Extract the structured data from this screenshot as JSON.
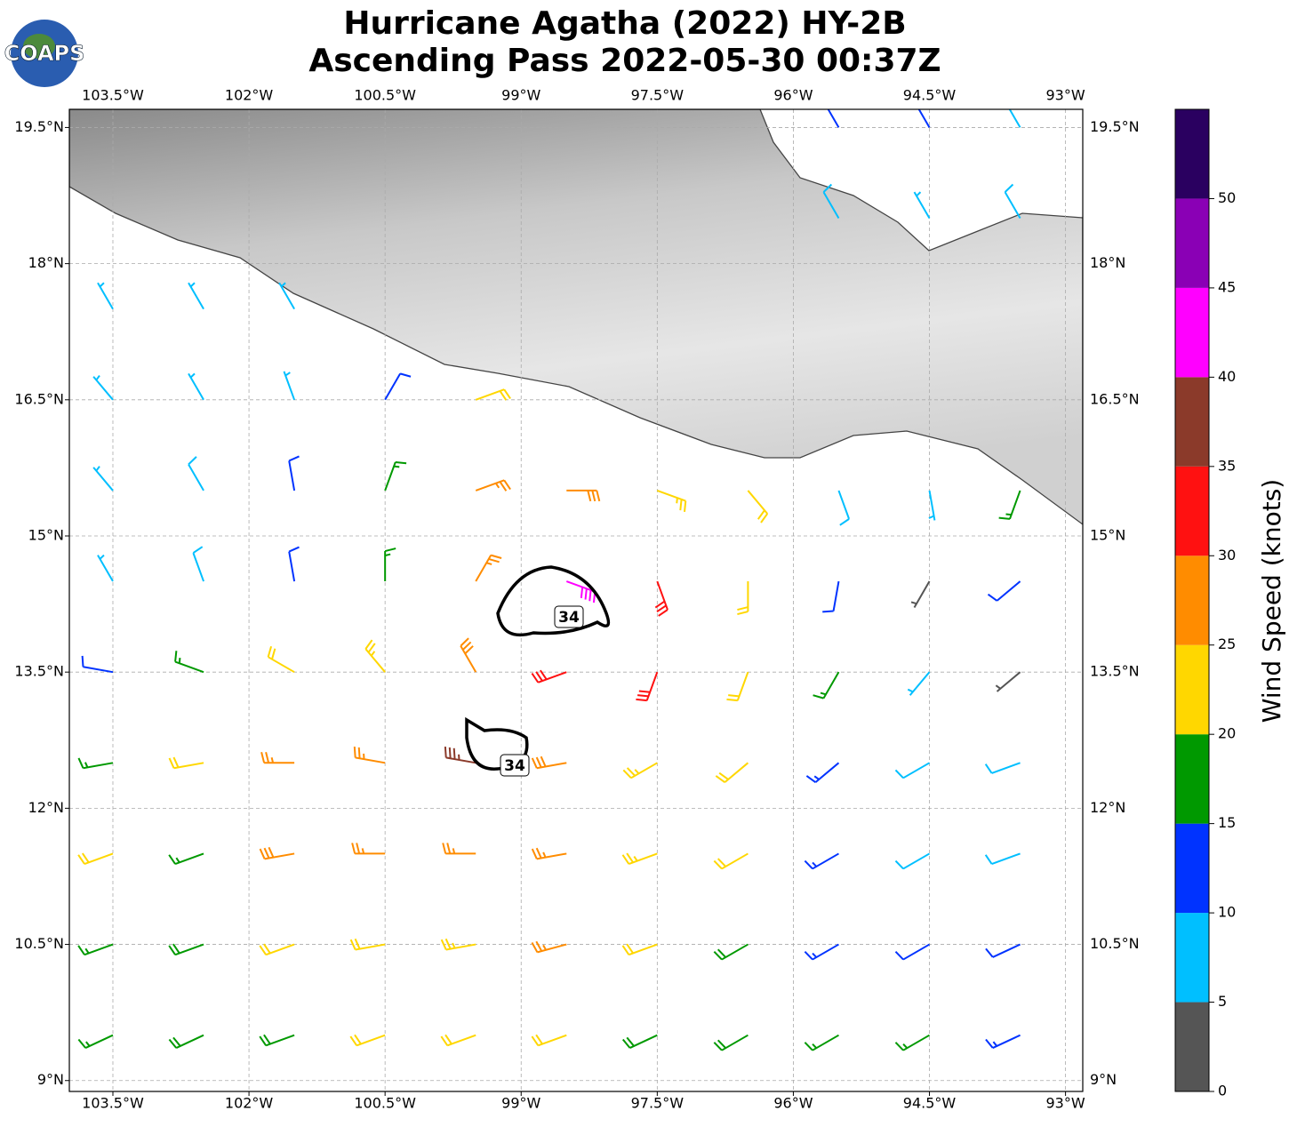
{
  "chart_data": {
    "type": "wind_barbs",
    "logo": "COAPS",
    "title": "Hurricane Agatha (2022) HY-2B",
    "subtitle": "Ascending Pass 2022-05-30 00:37Z",
    "xlim": [
      -103.98,
      -92.81
    ],
    "ylim": [
      8.88,
      19.7
    ],
    "xticks": [
      {
        "value": -103.5,
        "label": "103.5°W"
      },
      {
        "value": -102,
        "label": "102°W"
      },
      {
        "value": -100.5,
        "label": "100.5°W"
      },
      {
        "value": -99,
        "label": "99°W"
      },
      {
        "value": -97.5,
        "label": "97.5°W"
      },
      {
        "value": -96,
        "label": "96°W"
      },
      {
        "value": -94.5,
        "label": "94.5°W"
      },
      {
        "value": -93,
        "label": "93°W"
      }
    ],
    "yticks": [
      {
        "value": 9,
        "label": "9°N"
      },
      {
        "value": 10.5,
        "label": "10.5°N"
      },
      {
        "value": 12,
        "label": "12°N"
      },
      {
        "value": 13.5,
        "label": "13.5°N"
      },
      {
        "value": 15,
        "label": "15°N"
      },
      {
        "value": 16.5,
        "label": "16.5°N"
      },
      {
        "value": 18,
        "label": "18°N"
      },
      {
        "value": 19.5,
        "label": "19.5°N"
      }
    ],
    "grid": true,
    "contour_level": 34,
    "barbs": {
      "lons": [
        -103.5,
        -102.5,
        -101.5,
        -100.5,
        -99.5,
        -98.5,
        -97.5,
        -96.5,
        -95.5,
        -94.5,
        -93.5
      ],
      "lats": [
        19.5,
        18.5,
        17.5,
        16.5,
        15.5,
        14.5,
        13.5,
        12.5,
        11.5,
        10.5,
        9.5
      ],
      "speed": [
        [
          null,
          null,
          null,
          null,
          null,
          null,
          null,
          null,
          12,
          10,
          8
        ],
        [
          null,
          null,
          null,
          null,
          null,
          null,
          null,
          null,
          8,
          7,
          8
        ],
        [
          7,
          7,
          7,
          null,
          null,
          null,
          null,
          null,
          null,
          null,
          null
        ],
        [
          6,
          7,
          7,
          12,
          22,
          null,
          null,
          null,
          null,
          null,
          null
        ],
        [
          7,
          8,
          12,
          17,
          27,
          28,
          23,
          20,
          8,
          7,
          17
        ],
        [
          7,
          8,
          10,
          17,
          25,
          42,
          30,
          22,
          12,
          3,
          10
        ],
        [
          12,
          17,
          20,
          24,
          28,
          30,
          30,
          22,
          15,
          7,
          3
        ],
        [
          17,
          22,
          27,
          27,
          37,
          28,
          24,
          20,
          13,
          8,
          8
        ],
        [
          20,
          17,
          28,
          27,
          25,
          27,
          23,
          20,
          13,
          8,
          8
        ],
        [
          17,
          18,
          20,
          22,
          23,
          25,
          22,
          18,
          13,
          10,
          10
        ],
        [
          17,
          18,
          18,
          20,
          22,
          20,
          18,
          18,
          17,
          16,
          13
        ]
      ],
      "direction": [
        [
          null,
          null,
          null,
          null,
          null,
          null,
          null,
          null,
          330,
          330,
          330
        ],
        [
          null,
          null,
          null,
          null,
          null,
          null,
          null,
          null,
          330,
          330,
          330
        ],
        [
          330,
          330,
          330,
          null,
          null,
          null,
          null,
          null,
          null,
          null,
          null
        ],
        [
          320,
          330,
          340,
          30,
          70,
          null,
          null,
          null,
          null,
          null,
          null
        ],
        [
          320,
          330,
          350,
          20,
          70,
          90,
          110,
          140,
          160,
          170,
          200
        ],
        [
          330,
          340,
          350,
          0,
          30,
          110,
          160,
          180,
          190,
          210,
          230
        ],
        [
          280,
          290,
          300,
          320,
          330,
          250,
          200,
          200,
          210,
          220,
          230
        ],
        [
          260,
          260,
          270,
          280,
          280,
          260,
          240,
          230,
          230,
          240,
          250
        ],
        [
          250,
          250,
          260,
          270,
          270,
          260,
          250,
          240,
          240,
          240,
          250
        ],
        [
          250,
          250,
          250,
          260,
          260,
          255,
          250,
          240,
          240,
          240,
          245
        ],
        [
          245,
          245,
          250,
          250,
          250,
          250,
          245,
          240,
          240,
          240,
          245
        ]
      ]
    },
    "colorbar": {
      "label": "Wind Speed (knots)",
      "clim": [
        0,
        55
      ],
      "bounds": [
        0,
        5,
        10,
        15,
        20,
        25,
        30,
        35,
        40,
        45,
        50,
        55
      ],
      "colors": [
        "#555555",
        "#00bfff",
        "#0033ff",
        "#009900",
        "#ffd700",
        "#ff8c00",
        "#ff1111",
        "#8b3a2a",
        "#ff00ff",
        "#8a00b5",
        "#2a0060"
      ],
      "ticks": [
        0,
        5,
        10,
        15,
        20,
        25,
        30,
        35,
        40,
        45,
        50
      ]
    }
  }
}
